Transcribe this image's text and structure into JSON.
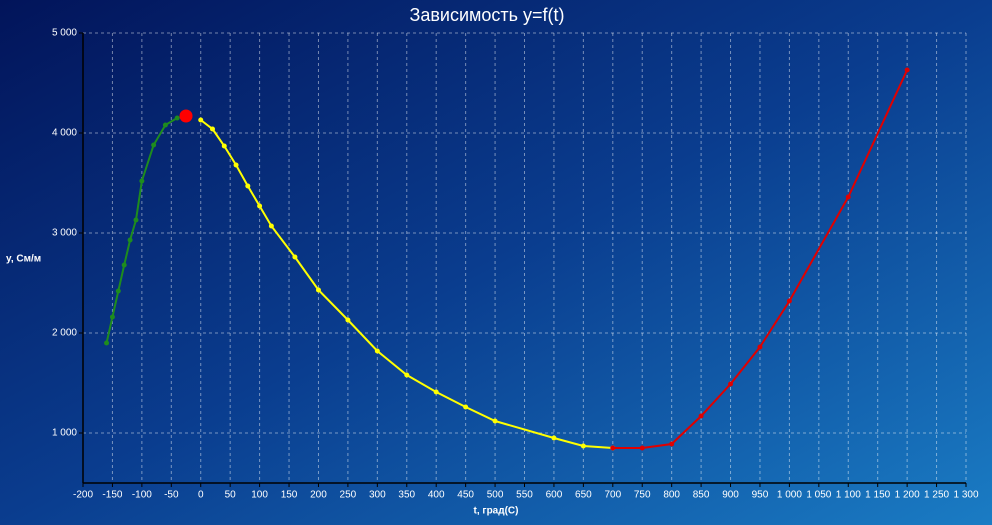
{
  "chart_data": {
    "type": "line",
    "title": "Зависимость y=f(t)",
    "xlabel": "t, град(С)",
    "ylabel": "y, См/м",
    "xlim": [
      -200,
      1300
    ],
    "ylim": [
      500,
      5000
    ],
    "grid": true,
    "xticks": [
      -200,
      -150,
      -100,
      -50,
      0,
      50,
      100,
      150,
      200,
      250,
      300,
      350,
      400,
      450,
      500,
      550,
      600,
      650,
      700,
      750,
      800,
      850,
      900,
      950,
      {
        "value": 1000,
        "label": "1 000"
      },
      {
        "value": 1050,
        "label": "1 050"
      },
      {
        "value": 1100,
        "label": "1 100"
      },
      {
        "value": 1150,
        "label": "1 150"
      },
      {
        "value": 1200,
        "label": "1 200"
      },
      {
        "value": 1250,
        "label": "1 250"
      },
      {
        "value": 1300,
        "label": "1 300"
      }
    ],
    "yticks": [
      {
        "value": 1000,
        "label": "1 000"
      },
      {
        "value": 2000,
        "label": "2 000"
      },
      {
        "value": 3000,
        "label": "3 000"
      },
      {
        "value": 4000,
        "label": "4 000"
      },
      {
        "value": 5000,
        "label": "5 000"
      }
    ],
    "series": [
      {
        "color": "#1e8c1e",
        "x": [
          -160,
          -150,
          -140,
          -130,
          -120,
          -110,
          -100,
          -80,
          -60,
          -40
        ],
        "values": [
          1900,
          2160,
          2420,
          2680,
          2930,
          3130,
          3520,
          3880,
          4080,
          4150
        ]
      },
      {
        "color": "#ffff00",
        "x": [
          0,
          20,
          40,
          60,
          80,
          100,
          120,
          160,
          200,
          250,
          300,
          350,
          400,
          450,
          500,
          600,
          650,
          700
        ],
        "values": [
          4130,
          4040,
          3870,
          3680,
          3470,
          3270,
          3070,
          2760,
          2430,
          2130,
          1820,
          1580,
          1410,
          1260,
          1120,
          950,
          870,
          850
        ]
      },
      {
        "color": "#e00000",
        "x": [
          700,
          750,
          800,
          850,
          900,
          950,
          1000,
          1100,
          1200
        ],
        "values": [
          850,
          850,
          890,
          1170,
          1490,
          1860,
          2320,
          3360,
          4630
        ]
      }
    ],
    "points": [
      {
        "x": -25,
        "y": 4170,
        "color": "#ff0000"
      }
    ]
  }
}
